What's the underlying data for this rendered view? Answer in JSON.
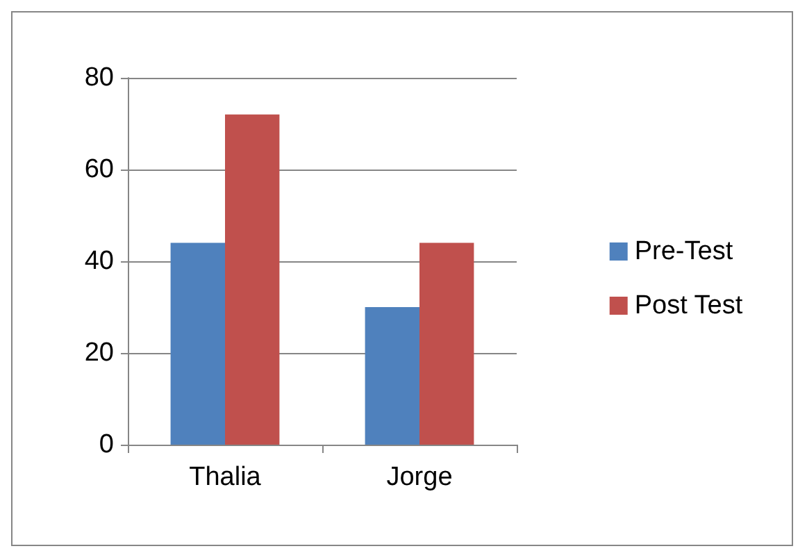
{
  "chart_data": {
    "type": "bar",
    "categories": [
      "Thalia",
      "Jorge"
    ],
    "series": [
      {
        "name": "Pre-Test",
        "color": "#4f81bd",
        "values": [
          44,
          30
        ]
      },
      {
        "name": "Post Test",
        "color": "#c0504d",
        "values": [
          72,
          44
        ]
      }
    ],
    "ylim": [
      0,
      80
    ],
    "yticks": [
      0,
      20,
      40,
      60,
      80
    ],
    "grid": "y",
    "legend": "right"
  }
}
